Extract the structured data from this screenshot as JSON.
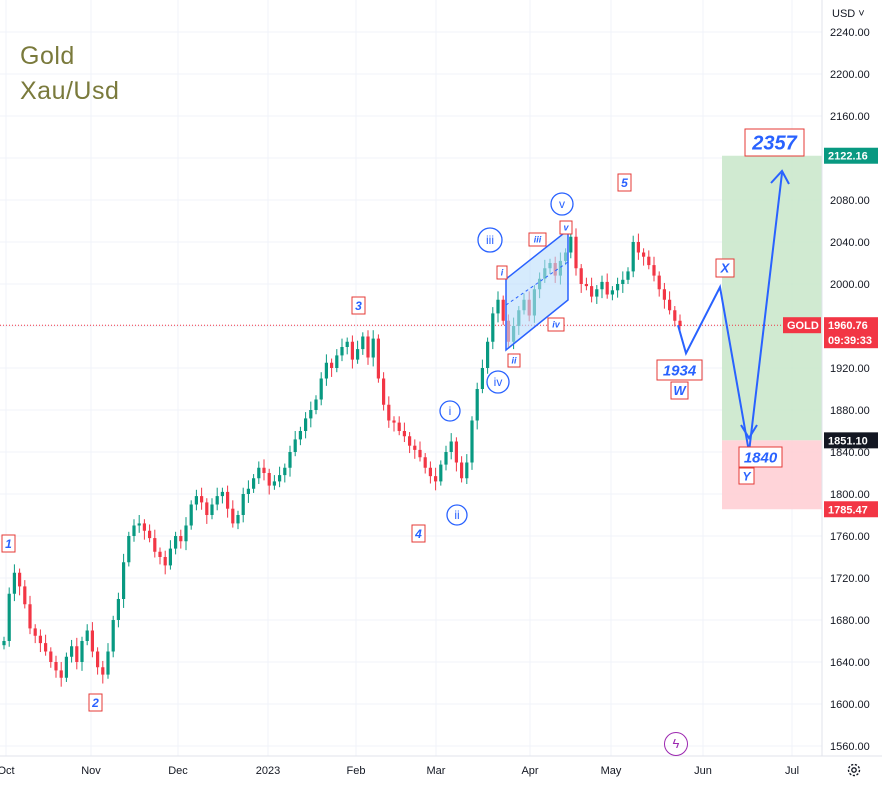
{
  "header": {
    "symbol_line": "Gold",
    "pair_line": "Xau/Usd",
    "currency_selector": "USD",
    "flash_icon": "lightning-icon",
    "settings_icon": "gear-icon"
  },
  "colors": {
    "up": "#089981",
    "down": "#f23645",
    "annotation_blue": "#2962ff",
    "label_red": "#e53935",
    "profit_zone": "#c8e6c9",
    "loss_zone": "#ffcdd2",
    "current_price_line": "#f23645",
    "title_color": "#7a7a3c"
  },
  "price_axis": {
    "ticks": [
      "2240.00",
      "2200.00",
      "2160.00",
      "2120.00",
      "2080.00",
      "2040.00",
      "2000.00",
      "1960.00",
      "1920.00",
      "1880.00",
      "1840.00",
      "1800.00",
      "1760.00",
      "1720.00",
      "1680.00",
      "1640.00",
      "1600.00",
      "1560.00"
    ],
    "badges": {
      "target": "2122.16",
      "gold_label": "GOLD",
      "current": "1960.76",
      "countdown": "09:39:33",
      "entry": "1851.10",
      "stop": "1785.47"
    }
  },
  "time_axis": [
    "Oct",
    "Nov",
    "Dec",
    "2023",
    "Feb",
    "Mar",
    "Apr",
    "May",
    "Jun",
    "Jul"
  ],
  "annotations": {
    "wave_1": "1",
    "wave_2": "2",
    "wave_3": "3",
    "wave_4": "4",
    "wave_5": "5",
    "sub_i": "i",
    "sub_ii": "ii",
    "sub_iii": "iii",
    "sub_iv": "iv",
    "sub_v": "v",
    "minor_i": "i",
    "minor_ii": "ii",
    "minor_iii": "iii",
    "minor_iv": "iv",
    "minor_v": "v",
    "corr_w": "W",
    "corr_x": "X",
    "corr_y": "Y",
    "target_w": "1934",
    "target_y": "1840",
    "target_top": "2357"
  },
  "chart_data": {
    "type": "candlestick",
    "instrument": "Xau/Usd",
    "x_range": [
      "Oct",
      "Jul"
    ],
    "ylim": [
      1545,
      2250
    ],
    "current_price": 1960.76,
    "position": {
      "entry": 1851.1,
      "target": 2122.16,
      "stop": 1785.47
    },
    "projected_path": [
      1960.76,
      1934,
      1997,
      1840,
      2122
    ],
    "closes": [
      1660,
      1705,
      1725,
      1712,
      1695,
      1672,
      1665,
      1658,
      1650,
      1640,
      1632,
      1625,
      1645,
      1655,
      1640,
      1660,
      1670,
      1650,
      1635,
      1628,
      1650,
      1680,
      1700,
      1735,
      1760,
      1770,
      1772,
      1765,
      1758,
      1745,
      1740,
      1732,
      1748,
      1760,
      1755,
      1770,
      1790,
      1798,
      1792,
      1780,
      1790,
      1798,
      1802,
      1786,
      1772,
      1780,
      1800,
      1805,
      1815,
      1825,
      1820,
      1808,
      1812,
      1818,
      1825,
      1840,
      1852,
      1860,
      1872,
      1880,
      1890,
      1910,
      1925,
      1920,
      1932,
      1940,
      1945,
      1928,
      1938,
      1950,
      1930,
      1948,
      1910,
      1885,
      1870,
      1868,
      1860,
      1855,
      1846,
      1842,
      1835,
      1825,
      1817,
      1812,
      1828,
      1840,
      1850,
      1830,
      1815,
      1830,
      1870,
      1900,
      1920,
      1945,
      1972,
      1985,
      1965,
      1945,
      1960,
      1975,
      1985,
      1970,
      1995,
      2005,
      2015,
      2020,
      2008,
      2022,
      2030,
      2045,
      2015,
      2000,
      1998,
      1988,
      1995,
      2002,
      1990,
      1994,
      2000,
      2004,
      2012,
      2040,
      2030,
      2026,
      2018,
      2008,
      1995,
      1985,
      1975,
      1965,
      1960
    ]
  }
}
